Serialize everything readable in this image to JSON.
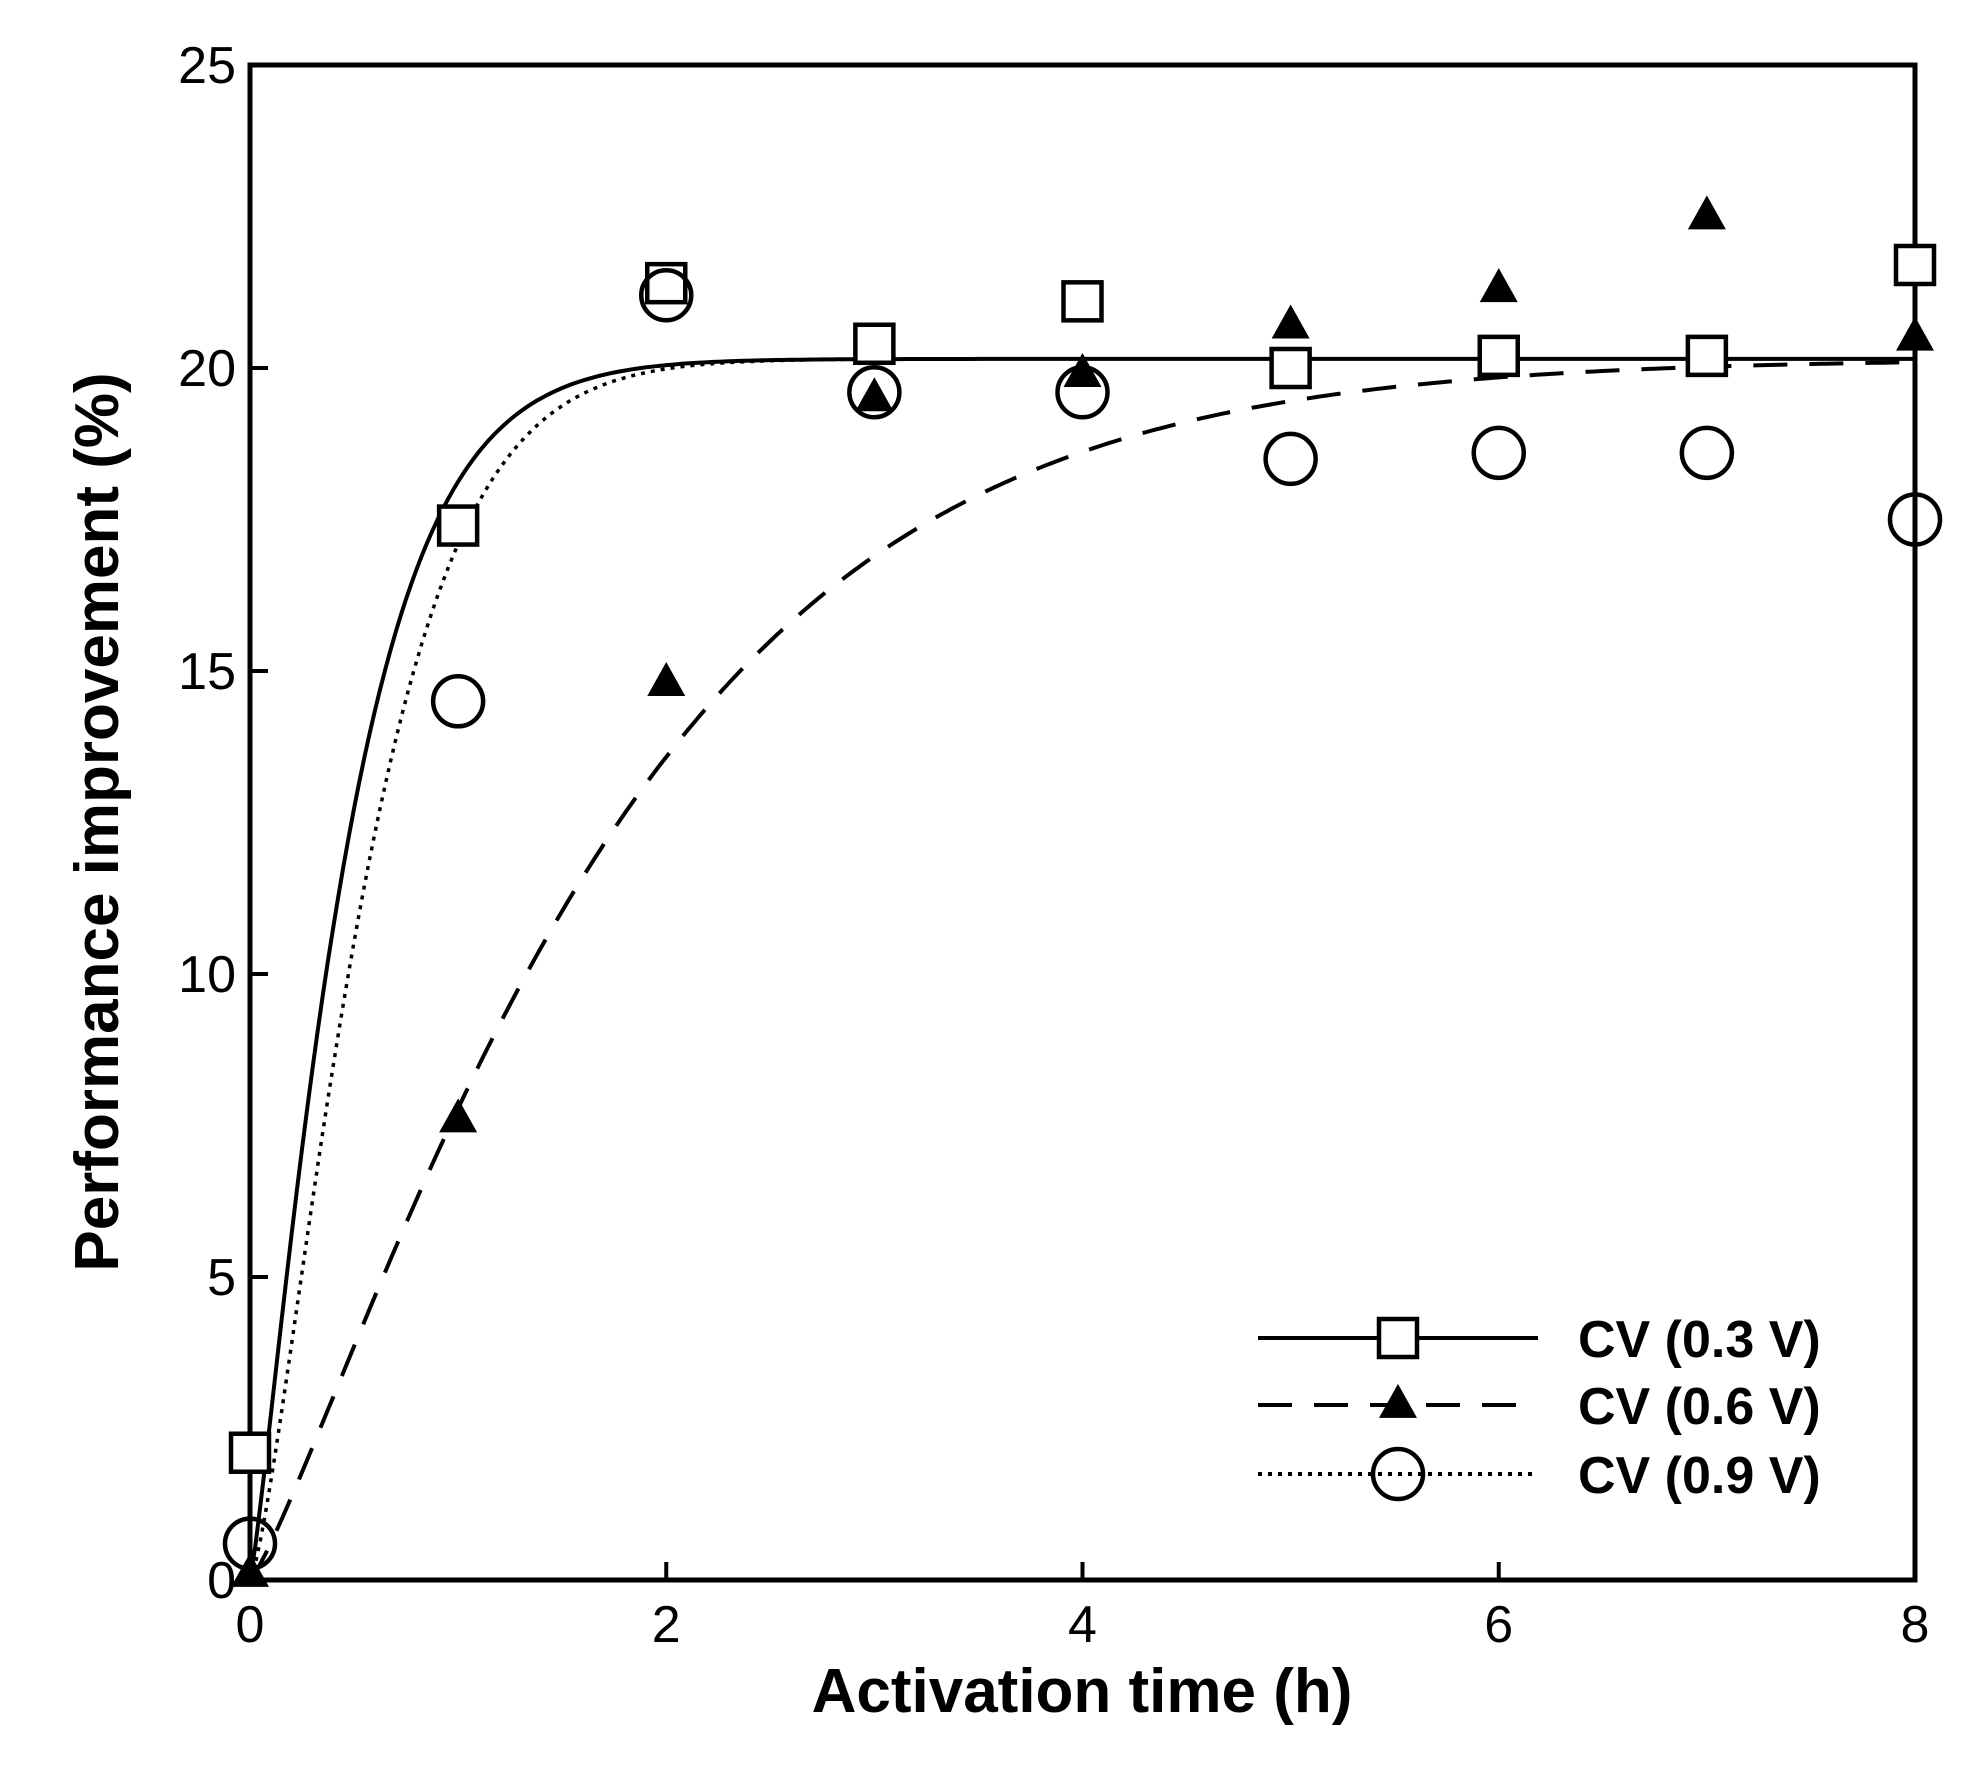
{
  "chart_data": {
    "type": "scatter",
    "title": "",
    "xlabel": "Activation time (h)",
    "ylabel": "Performance improvement (%)",
    "xlim": [
      0,
      8
    ],
    "ylim": [
      0,
      25
    ],
    "xticks": [
      0,
      2,
      4,
      6,
      8
    ],
    "yticks": [
      0,
      5,
      10,
      15,
      20,
      25
    ],
    "grid": false,
    "legend_position": "bottom-right",
    "series": [
      {
        "name": "CV (0.3 V)",
        "marker": "open-square",
        "line_style": "solid",
        "x": [
          0,
          1,
          2,
          3,
          4,
          5,
          6,
          7,
          8
        ],
        "y": [
          2.1,
          17.4,
          21.4,
          20.4,
          21.1,
          20.0,
          20.2,
          20.2,
          21.7
        ],
        "fit": {
          "a": 20.15,
          "k": 2.0,
          "n": 1.2
        }
      },
      {
        "name": "CV (0.6 V)",
        "marker": "filled-triangle",
        "line_style": "dashed",
        "x": [
          0,
          1,
          2,
          3,
          4,
          5,
          6,
          7,
          8
        ],
        "y": [
          0.1,
          7.6,
          14.8,
          19.5,
          19.9,
          20.7,
          21.3,
          22.5,
          20.5
        ],
        "fit": {
          "a": 20.15,
          "k": 0.55,
          "n": 1.2
        }
      },
      {
        "name": "CV (0.9 V)",
        "marker": "open-circle",
        "line_style": "dotted",
        "x": [
          0,
          1,
          2,
          3,
          4,
          5,
          6,
          7,
          8
        ],
        "y": [
          0.6,
          14.5,
          21.2,
          19.6,
          19.6,
          18.5,
          18.6,
          18.6,
          17.5
        ],
        "fit": {
          "a": 20.15,
          "k": 1.6,
          "n": 1.35
        }
      }
    ]
  }
}
